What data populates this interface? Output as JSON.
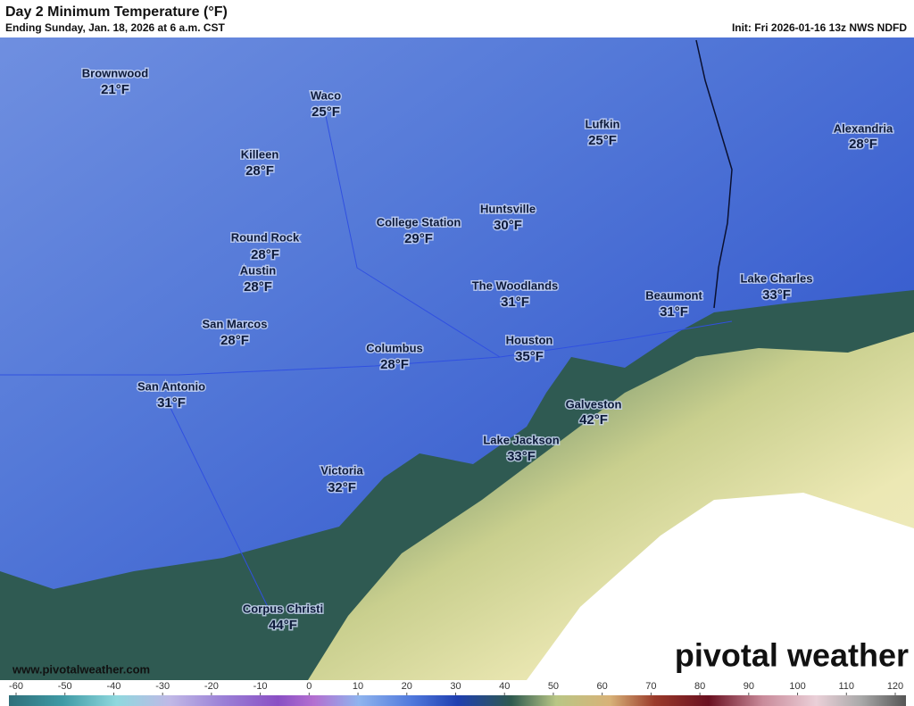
{
  "header": {
    "title": "Day 2 Minimum Temperature (°F)",
    "subtitle": "Ending Sunday, Jan. 18, 2026 at 6 a.m. CST",
    "init": "Init: Fri 2026-01-16 13z NWS NDFD"
  },
  "cities": [
    {
      "name": "Brownwood",
      "temp": "21°F"
    },
    {
      "name": "Waco",
      "temp": "25°F"
    },
    {
      "name": "Killeen",
      "temp": "28°F"
    },
    {
      "name": "Lufkin",
      "temp": "25°F"
    },
    {
      "name": "Alexandria",
      "temp": "28°F"
    },
    {
      "name": "Huntsville",
      "temp": "30°F"
    },
    {
      "name": "College Station",
      "temp": "29°F"
    },
    {
      "name": "Round Rock",
      "temp": "28°F"
    },
    {
      "name": "Austin",
      "temp": "28°F"
    },
    {
      "name": "The Woodlands",
      "temp": "31°F"
    },
    {
      "name": "Beaumont",
      "temp": "31°F"
    },
    {
      "name": "Lake Charles",
      "temp": "33°F"
    },
    {
      "name": "San Marcos",
      "temp": "28°F"
    },
    {
      "name": "Houston",
      "temp": "35°F"
    },
    {
      "name": "Columbus",
      "temp": "28°F"
    },
    {
      "name": "San Antonio",
      "temp": "31°F"
    },
    {
      "name": "Galveston",
      "temp": "42°F"
    },
    {
      "name": "Lake Jackson",
      "temp": "33°F"
    },
    {
      "name": "Victoria",
      "temp": "32°F"
    },
    {
      "name": "Corpus Christi",
      "temp": "44°F"
    }
  ],
  "footer": {
    "website": "www.pivotalweather.com",
    "brand": "pivotal weather"
  },
  "colorbar": {
    "ticks": [
      -60,
      -50,
      -40,
      -30,
      -20,
      -10,
      0,
      10,
      20,
      30,
      40,
      50,
      60,
      70,
      80,
      90,
      100,
      110,
      120
    ]
  }
}
